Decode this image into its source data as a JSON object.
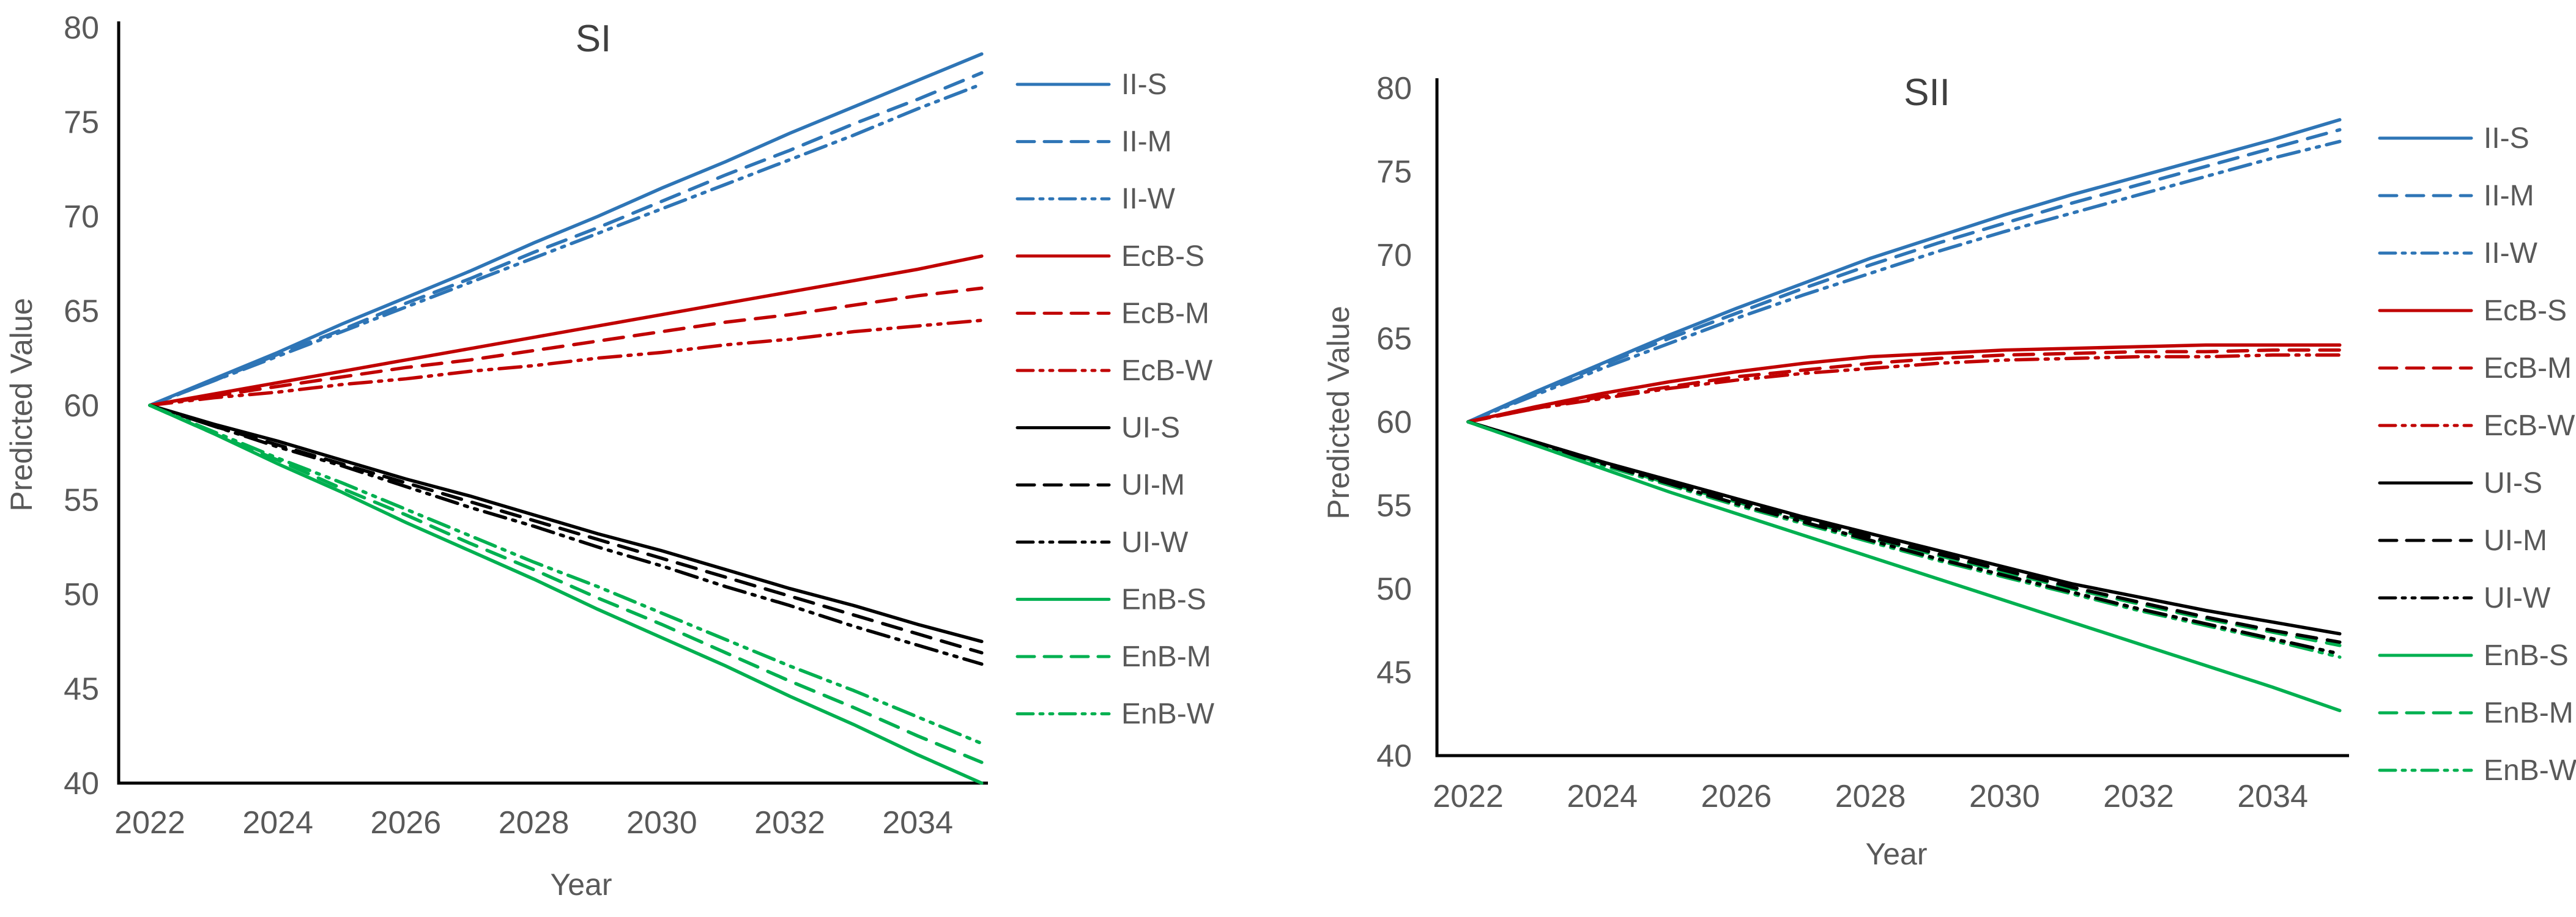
{
  "figure": {
    "description": "Two side-by-side line charts of predicted values 2022-2035 under scenarios SI and SII",
    "background": "#ffffff"
  },
  "palette": {
    "ii_blue": "#2E75B6",
    "ecb_red": "#C00000",
    "ui_black": "#000000",
    "enb_green": "#00B050",
    "tick_text_gray": "#595959",
    "title_text_gray": "#404040",
    "axis_line_black": "#000000"
  },
  "chart_data": [
    {
      "type": "line",
      "title": "SI",
      "xlabel": "Year",
      "ylabel": "Predicted Value",
      "ylim": [
        40,
        80
      ],
      "xlim": [
        2021.5,
        2035.5
      ],
      "grid": false,
      "legend_position": "right",
      "x_ticks": [
        2022,
        2024,
        2026,
        2028,
        2030,
        2032,
        2034
      ],
      "y_ticks": [
        40,
        45,
        50,
        55,
        60,
        65,
        70,
        75,
        80
      ],
      "x": [
        2022,
        2023,
        2024,
        2025,
        2026,
        2027,
        2028,
        2029,
        2030,
        2031,
        2032,
        2033,
        2034,
        2035
      ],
      "legend": [
        "II-S",
        "II-M",
        "II-W",
        "EcB-S",
        "EcB-M",
        "EcB-W",
        "UI-S",
        "UI-M",
        "UI-W",
        "EnB-S",
        "EnB-M",
        "EnB-W"
      ],
      "series": [
        {
          "name": "II-S",
          "color": "#2E75B6",
          "style": "solid",
          "values": [
            60.0,
            61.4,
            62.8,
            64.3,
            65.7,
            67.1,
            68.6,
            70.0,
            71.5,
            72.9,
            74.4,
            75.8,
            77.2,
            78.6
          ]
        },
        {
          "name": "II-M",
          "color": "#2E75B6",
          "style": "dash",
          "values": [
            60.0,
            61.3,
            62.7,
            64.0,
            65.4,
            66.7,
            68.1,
            69.4,
            70.8,
            72.2,
            73.5,
            74.9,
            76.2,
            77.6
          ]
        },
        {
          "name": "II-W",
          "color": "#2E75B6",
          "style": "dashdotdot",
          "values": [
            60.0,
            61.3,
            62.6,
            63.9,
            65.2,
            66.5,
            67.8,
            69.1,
            70.4,
            71.7,
            73.0,
            74.3,
            75.7,
            77.0
          ]
        },
        {
          "name": "EcB-S",
          "color": "#C00000",
          "style": "solid",
          "values": [
            60.0,
            60.6,
            61.2,
            61.8,
            62.4,
            63.0,
            63.6,
            64.2,
            64.8,
            65.4,
            66.0,
            66.6,
            67.2,
            67.9
          ]
        },
        {
          "name": "EcB-M",
          "color": "#C00000",
          "style": "dash",
          "values": [
            60.0,
            60.5,
            61.0,
            61.5,
            62.0,
            62.4,
            62.9,
            63.4,
            63.9,
            64.4,
            64.8,
            65.3,
            65.8,
            66.2
          ]
        },
        {
          "name": "EcB-W",
          "color": "#C00000",
          "style": "dashdotdot",
          "values": [
            60.0,
            60.4,
            60.7,
            61.1,
            61.4,
            61.8,
            62.1,
            62.5,
            62.8,
            63.2,
            63.5,
            63.9,
            64.2,
            64.5
          ]
        },
        {
          "name": "UI-S",
          "color": "#000000",
          "style": "solid",
          "values": [
            60.0,
            59.0,
            58.1,
            57.1,
            56.1,
            55.2,
            54.2,
            53.2,
            52.3,
            51.3,
            50.3,
            49.4,
            48.4,
            47.5
          ]
        },
        {
          "name": "UI-M",
          "color": "#000000",
          "style": "dash",
          "values": [
            60.0,
            58.9,
            57.9,
            56.9,
            55.9,
            54.9,
            53.9,
            52.9,
            51.9,
            50.9,
            49.9,
            48.9,
            47.9,
            46.9
          ]
        },
        {
          "name": "UI-W",
          "color": "#000000",
          "style": "dashdotdot",
          "values": [
            60.0,
            58.9,
            57.8,
            56.8,
            55.7,
            54.6,
            53.6,
            52.5,
            51.5,
            50.4,
            49.4,
            48.3,
            47.3,
            46.3
          ]
        },
        {
          "name": "EnB-S",
          "color": "#00B050",
          "style": "solid",
          "values": [
            60.0,
            58.5,
            56.9,
            55.4,
            53.8,
            52.3,
            50.8,
            49.2,
            47.7,
            46.2,
            44.6,
            43.1,
            41.5,
            40.0
          ]
        },
        {
          "name": "EnB-M",
          "color": "#00B050",
          "style": "dash",
          "values": [
            60.0,
            58.5,
            57.1,
            55.6,
            54.2,
            52.7,
            51.3,
            49.8,
            48.4,
            46.9,
            45.4,
            44.0,
            42.5,
            41.1
          ]
        },
        {
          "name": "EnB-W",
          "color": "#00B050",
          "style": "dashdotdot",
          "values": [
            60.0,
            58.6,
            57.2,
            55.9,
            54.5,
            53.1,
            51.7,
            50.4,
            49.0,
            47.6,
            46.2,
            44.9,
            43.5,
            42.1
          ]
        }
      ]
    },
    {
      "type": "line",
      "title": "SII",
      "xlabel": "Year",
      "ylabel": "Predicted Value",
      "ylim": [
        40,
        80
      ],
      "xlim": [
        2021.5,
        2035.5
      ],
      "grid": false,
      "legend_position": "right",
      "x_ticks": [
        2022,
        2024,
        2026,
        2028,
        2030,
        2032,
        2034
      ],
      "y_ticks": [
        40,
        45,
        50,
        55,
        60,
        65,
        70,
        75,
        80
      ],
      "x": [
        2022,
        2023,
        2024,
        2025,
        2026,
        2027,
        2028,
        2029,
        2030,
        2031,
        2032,
        2033,
        2034,
        2035
      ],
      "legend": [
        "II-S",
        "II-M",
        "II-W",
        "EcB-S",
        "EcB-M",
        "EcB-W",
        "UI-S",
        "UI-M",
        "UI-W",
        "EnB-S",
        "EnB-M",
        "EnB-W"
      ],
      "draw_order": [
        "II-S",
        "II-M",
        "II-W",
        "EcB-S",
        "EcB-M",
        "EcB-W",
        "EnB-M",
        "EnB-W",
        "UI-S",
        "UI-M",
        "UI-W",
        "EnB-S"
      ],
      "series": [
        {
          "name": "II-S",
          "color": "#2E75B6",
          "style": "solid",
          "values": [
            60.0,
            61.8,
            63.5,
            65.2,
            66.8,
            68.3,
            69.8,
            71.1,
            72.4,
            73.6,
            74.7,
            75.8,
            76.9,
            78.1
          ]
        },
        {
          "name": "II-M",
          "color": "#2E75B6",
          "style": "dash",
          "values": [
            60.0,
            61.7,
            63.4,
            65.0,
            66.5,
            68.0,
            69.4,
            70.7,
            71.9,
            73.1,
            74.2,
            75.3,
            76.4,
            77.5
          ]
        },
        {
          "name": "II-W",
          "color": "#2E75B6",
          "style": "dashdotdot",
          "values": [
            60.0,
            61.6,
            63.2,
            64.7,
            66.2,
            67.6,
            68.9,
            70.2,
            71.4,
            72.5,
            73.6,
            74.7,
            75.8,
            76.8
          ]
        },
        {
          "name": "EcB-S",
          "color": "#C00000",
          "style": "solid",
          "values": [
            60.0,
            60.9,
            61.7,
            62.4,
            63.0,
            63.5,
            63.9,
            64.1,
            64.3,
            64.4,
            64.5,
            64.6,
            64.6,
            64.6
          ]
        },
        {
          "name": "EcB-M",
          "color": "#C00000",
          "style": "dash",
          "values": [
            60.0,
            60.8,
            61.5,
            62.1,
            62.7,
            63.1,
            63.5,
            63.8,
            64.0,
            64.1,
            64.2,
            64.2,
            64.3,
            64.3
          ]
        },
        {
          "name": "EcB-W",
          "color": "#C00000",
          "style": "dashdotdot",
          "values": [
            60.0,
            60.8,
            61.4,
            62.0,
            62.5,
            62.9,
            63.2,
            63.5,
            63.7,
            63.8,
            63.9,
            63.9,
            64.0,
            64.0
          ]
        },
        {
          "name": "UI-S",
          "color": "#000000",
          "style": "solid",
          "values": [
            60.0,
            58.8,
            57.6,
            56.5,
            55.4,
            54.3,
            53.3,
            52.3,
            51.3,
            50.3,
            49.5,
            48.7,
            48.0,
            47.3
          ]
        },
        {
          "name": "UI-M",
          "color": "#000000",
          "style": "dash",
          "values": [
            60.0,
            58.8,
            57.6,
            56.4,
            55.3,
            54.2,
            53.1,
            52.1,
            51.1,
            50.1,
            49.2,
            48.3,
            47.5,
            46.8
          ]
        },
        {
          "name": "UI-W",
          "color": "#000000",
          "style": "dashdotdot",
          "values": [
            60.0,
            58.7,
            57.5,
            56.3,
            55.1,
            54.0,
            52.9,
            51.8,
            50.8,
            49.8,
            48.8,
            47.9,
            47.0,
            46.1
          ]
        },
        {
          "name": "EnB-S",
          "color": "#00B050",
          "style": "solid",
          "values": [
            60.0,
            58.6,
            57.2,
            55.8,
            54.5,
            53.2,
            51.9,
            50.6,
            49.3,
            48.0,
            46.7,
            45.4,
            44.1,
            42.7
          ]
        },
        {
          "name": "EnB-M",
          "color": "#00B050",
          "style": "dash",
          "values": [
            60.0,
            58.7,
            57.5,
            56.3,
            55.2,
            54.1,
            53.0,
            52.0,
            51.0,
            50.0,
            49.1,
            48.2,
            47.4,
            46.6
          ]
        },
        {
          "name": "EnB-W",
          "color": "#00B050",
          "style": "dashdotdot",
          "values": [
            60.0,
            58.6,
            57.4,
            56.2,
            55.0,
            53.9,
            52.8,
            51.7,
            50.7,
            49.7,
            48.7,
            47.8,
            46.9,
            45.9
          ]
        }
      ]
    }
  ]
}
